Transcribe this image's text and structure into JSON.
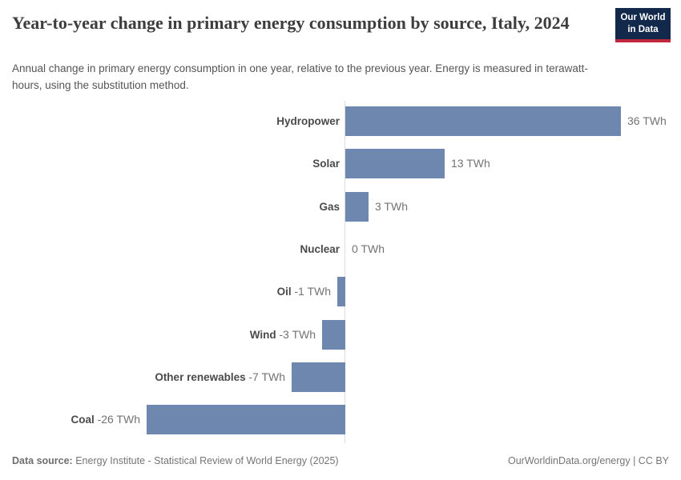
{
  "header": {
    "title": "Year-to-year change in primary energy consumption by source, Italy, 2024",
    "subtitle": "Annual change in primary energy consumption in one year, relative to the previous year. Energy is measured in terawatt-hours, using the substitution method.",
    "logo": {
      "line1": "Our World",
      "line2": "in Data"
    }
  },
  "chart_data": {
    "type": "bar",
    "orientation": "horizontal",
    "title": "Year-to-year change in primary energy consumption by source, Italy, 2024",
    "unit": "TWh",
    "categories": [
      "Hydropower",
      "Solar",
      "Gas",
      "Nuclear",
      "Oil",
      "Wind",
      "Other renewables",
      "Coal"
    ],
    "values": [
      36,
      13,
      3,
      0,
      -1,
      -3,
      -7,
      -26
    ],
    "value_labels": [
      "36 TWh",
      "13 TWh",
      "3 TWh",
      "0 TWh",
      "-1 TWh",
      "-3 TWh",
      "-7 TWh",
      "-26 TWh"
    ],
    "xlim": [
      -26,
      36
    ],
    "grid": false,
    "legend": false,
    "bar_color": "#6e87af"
  },
  "footer": {
    "source_label": "Data source:",
    "source_text": " Energy Institute - Statistical Review of World Energy (2025)",
    "credit": "OurWorldinData.org/energy | CC BY"
  },
  "colors": {
    "bar": "#6e87af",
    "logo_navy": "#12294b",
    "logo_red": "#c0273d",
    "axis": "#dcdce3",
    "title_text": "#3d3d3d",
    "subtitle_text": "#555555",
    "category_text": "#4a4a4a",
    "value_text": "#737373"
  }
}
